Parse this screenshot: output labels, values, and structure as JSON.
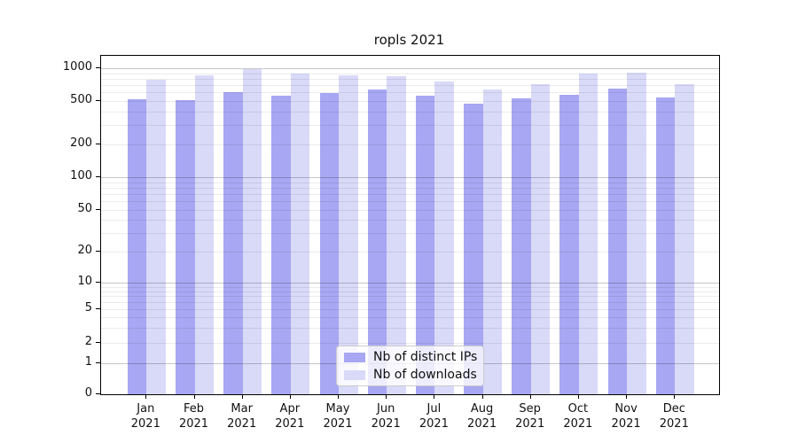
{
  "chart_data": {
    "type": "bar",
    "title": "ropls 2021",
    "categories": [
      "Jan",
      "Feb",
      "Mar",
      "Apr",
      "May",
      "Jun",
      "Jul",
      "Aug",
      "Sep",
      "Oct",
      "Nov",
      "Dec"
    ],
    "category_year": "2021",
    "series": [
      {
        "name": "Nb of distinct IPs",
        "color": "#a7a7f3",
        "values": [
          523,
          509,
          598,
          560,
          595,
          641,
          560,
          470,
          527,
          571,
          654,
          541
        ]
      },
      {
        "name": "Nb of downloads",
        "color": "#d9d9f8",
        "values": [
          786,
          866,
          988,
          890,
          866,
          851,
          761,
          643,
          719,
          889,
          918,
          719
        ]
      }
    ],
    "yticks": [
      0,
      1,
      2,
      5,
      10,
      20,
      50,
      100,
      200,
      500,
      1000
    ],
    "ylim": [
      0,
      1300
    ],
    "yscale": "symlog",
    "grid": true,
    "legend_position": "lower center"
  }
}
